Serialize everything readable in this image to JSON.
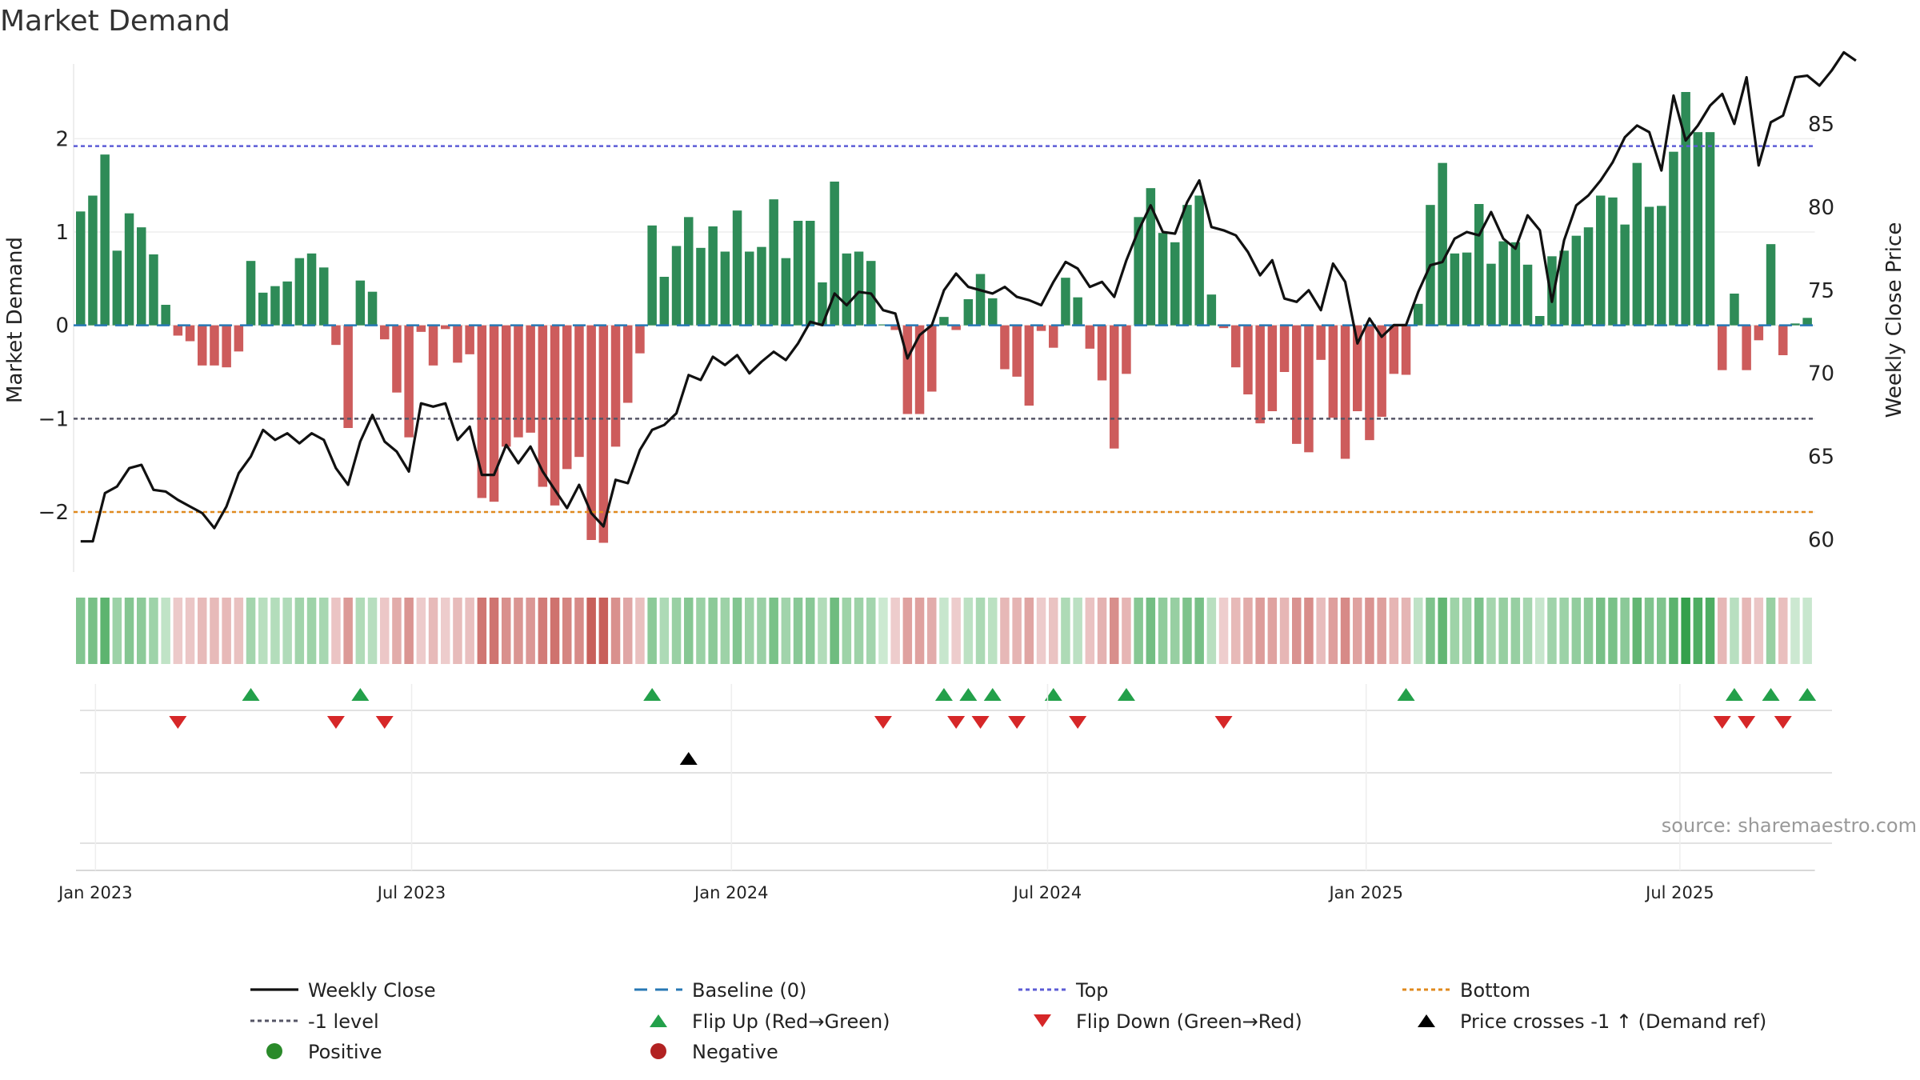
{
  "chart_data": {
    "type": "bar",
    "title": "Market Demand",
    "ylabel": "Market Demand",
    "y2label": "Weekly Close Price",
    "ylim": [
      -2.6,
      2.8
    ],
    "y2lim": [
      58.3,
      88.6
    ],
    "yticks": [
      2,
      1,
      0,
      -1,
      -2
    ],
    "ytick_labels": [
      "2",
      "1",
      "0",
      "−1",
      "−2"
    ],
    "y2ticks": [
      85,
      80,
      75,
      70,
      65,
      60
    ],
    "x_labels": [
      "Jan 2023",
      "Jul 2023",
      "Jan 2024",
      "Jul 2024",
      "Jan 2025",
      "Jul 2025"
    ],
    "x_label_weeks": [
      1.6,
      27.6,
      53.9,
      79.9,
      106.1,
      131.9
    ],
    "levels": {
      "top": 1.92,
      "bottom": -2.0,
      "minus_one": -1.0,
      "baseline": 0
    },
    "demand": [
      1.22,
      1.39,
      1.83,
      0.8,
      1.2,
      1.05,
      0.76,
      0.22,
      -0.11,
      -0.17,
      -0.43,
      -0.43,
      -0.45,
      -0.28,
      0.69,
      0.35,
      0.42,
      0.47,
      0.72,
      0.77,
      0.62,
      -0.21,
      -1.1,
      0.48,
      0.36,
      -0.15,
      -0.72,
      -1.2,
      -0.07,
      -0.43,
      -0.04,
      -0.4,
      -0.31,
      -1.85,
      -1.89,
      -1.3,
      -1.2,
      -1.15,
      -1.73,
      -1.93,
      -1.54,
      -1.41,
      -2.3,
      -2.33,
      -1.3,
      -0.83,
      -0.3,
      1.07,
      0.52,
      0.85,
      1.16,
      0.83,
      1.06,
      0.79,
      1.23,
      0.79,
      0.84,
      1.35,
      0.72,
      1.12,
      1.12,
      0.46,
      1.54,
      0.77,
      0.79,
      0.69,
      0.01,
      -0.05,
      -0.95,
      -0.95,
      -0.71,
      0.09,
      -0.05,
      0.28,
      0.55,
      0.29,
      -0.47,
      -0.55,
      -0.86,
      -0.06,
      -0.24,
      0.51,
      0.3,
      -0.25,
      -0.59,
      -1.32,
      -0.52,
      1.16,
      1.47,
      0.99,
      0.89,
      1.29,
      1.39,
      0.33,
      -0.03,
      -0.45,
      -0.74,
      -1.05,
      -0.92,
      -0.5,
      -1.27,
      -1.36,
      -0.37,
      -0.99,
      -1.43,
      -0.92,
      -1.23,
      -0.98,
      -0.52,
      -0.53,
      0.23,
      1.29,
      1.74,
      0.77,
      0.78,
      1.3,
      0.66,
      0.9,
      0.89,
      0.65,
      0.1,
      0.74,
      0.8,
      0.96,
      1.05,
      1.39,
      1.37,
      1.08,
      1.74,
      1.27,
      1.28,
      1.86,
      2.5,
      2.07,
      2.07,
      -0.48,
      0.34,
      -0.48,
      -0.16,
      0.87,
      -0.32,
      0.02,
      0.08
    ],
    "close": [
      59.9,
      59.9,
      62.8,
      63.2,
      64.3,
      64.5,
      63.0,
      62.9,
      62.4,
      62.0,
      61.6,
      60.7,
      62.0,
      64.0,
      65.0,
      66.6,
      66.0,
      66.4,
      65.8,
      66.4,
      66.0,
      64.3,
      63.3,
      65.9,
      67.5,
      65.9,
      65.3,
      64.1,
      68.2,
      68.0,
      68.2,
      66.0,
      66.8,
      63.9,
      63.9,
      65.7,
      64.6,
      65.6,
      64.1,
      63.0,
      61.9,
      63.3,
      61.6,
      60.8,
      63.6,
      63.4,
      65.4,
      66.6,
      66.9,
      67.6,
      69.9,
      69.6,
      71.0,
      70.5,
      71.1,
      70.0,
      70.7,
      71.3,
      70.8,
      71.8,
      73.1,
      72.9,
      74.8,
      74.1,
      74.9,
      74.8,
      73.8,
      73.6,
      70.9,
      72.3,
      72.9,
      75.0,
      76.0,
      75.2,
      75.0,
      74.8,
      75.2,
      74.6,
      74.4,
      74.1,
      75.5,
      76.7,
      76.3,
      75.2,
      75.5,
      74.6,
      76.8,
      78.6,
      80.1,
      78.5,
      78.4,
      80.3,
      81.6,
      78.8,
      78.6,
      78.3,
      77.3,
      75.9,
      76.8,
      74.5,
      74.3,
      75.0,
      73.8,
      76.6,
      75.5,
      71.8,
      73.3,
      72.2,
      72.9,
      72.9,
      74.9,
      76.5,
      76.7,
      78.1,
      78.5,
      78.3,
      79.7,
      78.1,
      77.5,
      79.5,
      78.6,
      74.3,
      78.0,
      80.1,
      80.7,
      81.6,
      82.7,
      84.2,
      84.9,
      84.5,
      82.2,
      86.7,
      84.0,
      84.9,
      86.1,
      86.8,
      85.0,
      87.8,
      82.5,
      85.1,
      85.5,
      87.8,
      87.9,
      87.3,
      88.2,
      89.3,
      88.8
    ],
    "color_intensity_scale": [
      -2.33,
      2.5
    ],
    "flip_up_weeks": [
      14,
      23,
      47,
      71,
      73,
      75,
      80,
      86,
      109,
      136,
      139,
      142
    ],
    "flip_down_weeks": [
      8,
      21,
      25,
      66,
      72,
      74,
      77,
      82,
      94,
      135,
      137,
      140
    ],
    "price_cross_up_weeks": [
      50
    ],
    "source": "source: sharemaestro.com"
  },
  "legend": [
    {
      "label": "Weekly Close",
      "marker": "line",
      "color": "#111111"
    },
    {
      "label": "Baseline (0)",
      "marker": "dash",
      "color": "#2878b5"
    },
    {
      "label": "Top",
      "marker": "dot",
      "color": "#5c5cd6"
    },
    {
      "label": "Bottom",
      "marker": "dot",
      "color": "#e08a1e"
    },
    {
      "label": "-1 level",
      "marker": "dot",
      "color": "#555566"
    },
    {
      "label": "Flip Up (Red→Green)",
      "marker": "tri-up",
      "color": "#23a04a"
    },
    {
      "label": "Flip Down (Green→Red)",
      "marker": "tri-down",
      "color": "#d62728"
    },
    {
      "label": "Price crosses -1 ↑ (Demand ref)",
      "marker": "tri-up",
      "color": "#000000"
    },
    {
      "label": "Positive",
      "marker": "circle",
      "color": "#2a8a2a"
    },
    {
      "label": "Negative",
      "marker": "circle",
      "color": "#b22222"
    }
  ],
  "colors": {
    "positive_bar": "#2e8b57",
    "negative_bar": "#cd5c5c",
    "close_line": "#111111",
    "flip_up": "#23a04a",
    "flip_down": "#d62728"
  }
}
